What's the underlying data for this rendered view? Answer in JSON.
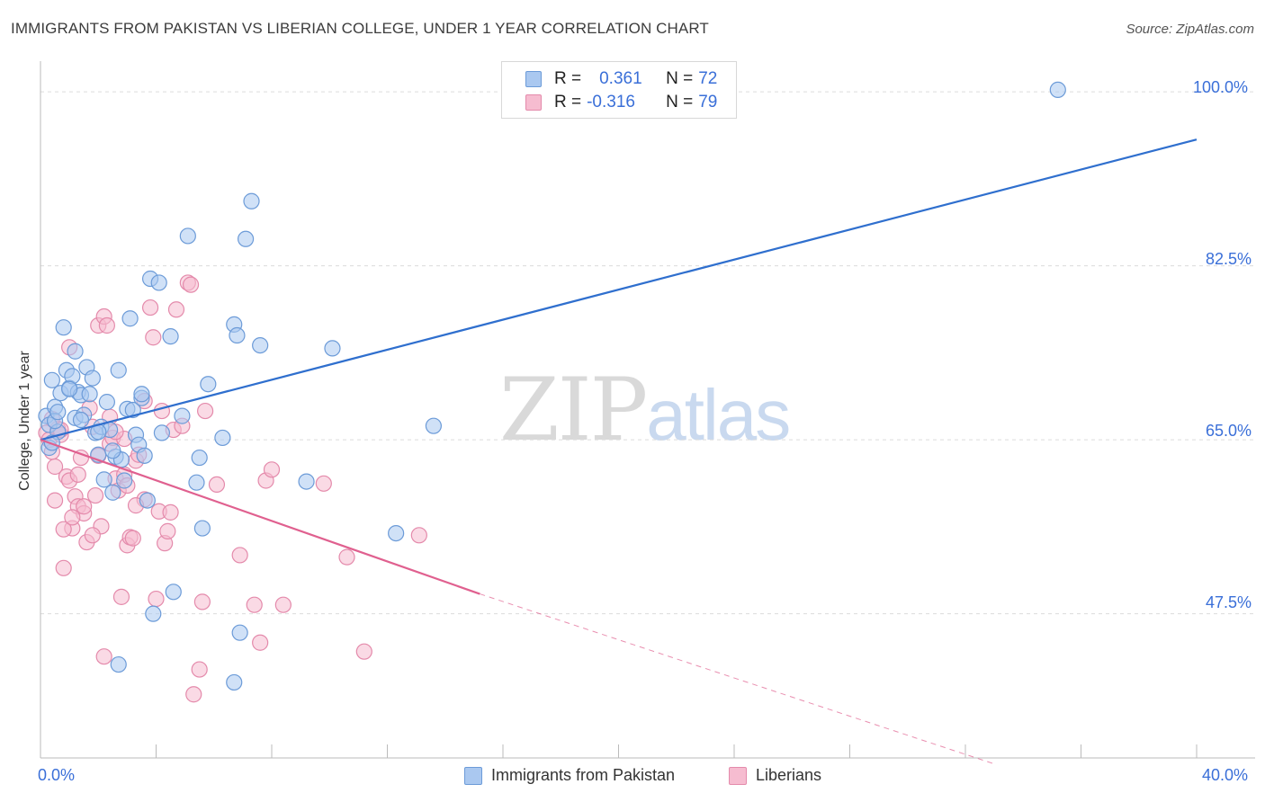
{
  "title": "IMMIGRANTS FROM PAKISTAN VS LIBERIAN COLLEGE, UNDER 1 YEAR CORRELATION CHART",
  "source": "Source: ZipAtlas.com",
  "watermark": {
    "zip": "ZIP",
    "atlas": "atlas"
  },
  "legend_top": {
    "row1": {
      "r_label": "R = ",
      "r_value": "0.361",
      "n_label": "N = ",
      "n_value": "72"
    },
    "row2": {
      "r_label": "R = ",
      "r_value": "-0.316",
      "n_label": "N = ",
      "n_value": "79"
    }
  },
  "legend_bottom": {
    "series1": "Immigrants from Pakistan",
    "series2": "Liberians"
  },
  "colors": {
    "blue_fill": "#aac8f0",
    "blue_stroke": "#6c9bd8",
    "blue_line": "#2f6fce",
    "pink_fill": "#f6bcd0",
    "pink_stroke": "#e48aab",
    "pink_line": "#e0608f",
    "grid": "#dcdcdc",
    "tick_text": "#3a6fd8"
  },
  "chart_data": {
    "type": "scatter",
    "title": "IMMIGRANTS FROM PAKISTAN VS LIBERIAN COLLEGE, UNDER 1 YEAR CORRELATION CHART",
    "xlabel": "",
    "ylabel": "College, Under 1 year",
    "xlim": [
      0,
      40
    ],
    "ylim": [
      33,
      102
    ],
    "x_tick_labels": [
      "0.0%",
      "40.0%"
    ],
    "y_ticks": [
      47.5,
      65.0,
      82.5,
      100.0
    ],
    "y_tick_labels": [
      "47.5%",
      "65.0%",
      "82.5%",
      "100.0%"
    ],
    "grid": true,
    "legend_position": "top-center",
    "series": [
      {
        "name": "Immigrants from Pakistan",
        "color": "#aac8f0",
        "points": [
          [
            0.2,
            67.4
          ],
          [
            0.3,
            66.5
          ],
          [
            0.3,
            64.2
          ],
          [
            0.4,
            71.0
          ],
          [
            0.5,
            68.3
          ],
          [
            0.6,
            65.8
          ],
          [
            0.7,
            69.7
          ],
          [
            0.8,
            76.3
          ],
          [
            0.9,
            72.0
          ],
          [
            1.0,
            70.2
          ],
          [
            1.1,
            71.4
          ],
          [
            1.2,
            67.2
          ],
          [
            1.3,
            69.8
          ],
          [
            1.4,
            69.5
          ],
          [
            1.5,
            67.5
          ],
          [
            1.6,
            72.3
          ],
          [
            1.8,
            71.2
          ],
          [
            1.9,
            65.7
          ],
          [
            2.0,
            63.5
          ],
          [
            2.1,
            66.3
          ],
          [
            2.2,
            61.0
          ],
          [
            2.3,
            68.8
          ],
          [
            2.4,
            66.0
          ],
          [
            2.5,
            59.7
          ],
          [
            2.6,
            63.3
          ],
          [
            2.7,
            72.0
          ],
          [
            2.8,
            63.0
          ],
          [
            2.9,
            60.9
          ],
          [
            3.0,
            68.1
          ],
          [
            3.1,
            77.2
          ],
          [
            3.2,
            68.0
          ],
          [
            3.3,
            65.5
          ],
          [
            3.4,
            64.5
          ],
          [
            3.5,
            69.2
          ],
          [
            3.6,
            63.4
          ],
          [
            3.7,
            58.9
          ],
          [
            3.8,
            81.2
          ],
          [
            4.1,
            80.8
          ],
          [
            4.2,
            65.7
          ],
          [
            4.5,
            75.4
          ],
          [
            4.6,
            49.7
          ],
          [
            4.9,
            67.4
          ],
          [
            5.1,
            85.5
          ],
          [
            5.4,
            60.7
          ],
          [
            5.5,
            63.2
          ],
          [
            5.8,
            70.6
          ],
          [
            6.3,
            65.2
          ],
          [
            6.7,
            76.6
          ],
          [
            6.8,
            75.5
          ],
          [
            7.1,
            85.2
          ],
          [
            7.3,
            89.0
          ],
          [
            7.6,
            74.5
          ],
          [
            9.2,
            60.8
          ],
          [
            10.1,
            74.2
          ],
          [
            12.3,
            55.6
          ],
          [
            13.6,
            66.4
          ],
          [
            35.2,
            100.2
          ],
          [
            3.9,
            47.5
          ],
          [
            2.7,
            42.4
          ],
          [
            6.9,
            45.6
          ],
          [
            6.7,
            40.6
          ],
          [
            0.4,
            64.7
          ],
          [
            0.5,
            66.9
          ],
          [
            1.7,
            69.6
          ],
          [
            2.0,
            65.8
          ],
          [
            1.2,
            73.9
          ],
          [
            1.0,
            70.1
          ],
          [
            0.6,
            67.8
          ],
          [
            3.5,
            69.6
          ],
          [
            2.5,
            63.9
          ],
          [
            5.6,
            56.1
          ],
          [
            1.4,
            67.0
          ]
        ]
      },
      {
        "name": "Liberians",
        "color": "#f6bcd0",
        "points": [
          [
            0.2,
            65.7
          ],
          [
            0.3,
            65.0
          ],
          [
            0.4,
            63.8
          ],
          [
            0.5,
            62.3
          ],
          [
            0.6,
            66.1
          ],
          [
            0.7,
            65.5
          ],
          [
            0.8,
            52.1
          ],
          [
            0.9,
            61.3
          ],
          [
            1.0,
            74.3
          ],
          [
            1.1,
            56.1
          ],
          [
            1.2,
            59.3
          ],
          [
            1.3,
            58.3
          ],
          [
            1.4,
            63.2
          ],
          [
            1.5,
            57.6
          ],
          [
            1.6,
            54.7
          ],
          [
            1.7,
            68.2
          ],
          [
            1.8,
            66.3
          ],
          [
            1.9,
            59.4
          ],
          [
            2.0,
            76.5
          ],
          [
            2.1,
            56.3
          ],
          [
            2.2,
            77.4
          ],
          [
            2.3,
            76.5
          ],
          [
            2.4,
            64.6
          ],
          [
            2.5,
            65.2
          ],
          [
            2.6,
            61.1
          ],
          [
            2.7,
            59.9
          ],
          [
            2.8,
            49.2
          ],
          [
            2.9,
            61.5
          ],
          [
            3.0,
            54.4
          ],
          [
            3.1,
            55.2
          ],
          [
            3.3,
            62.9
          ],
          [
            3.4,
            63.5
          ],
          [
            3.6,
            68.9
          ],
          [
            3.8,
            78.3
          ],
          [
            3.9,
            75.3
          ],
          [
            4.0,
            49.0
          ],
          [
            4.1,
            57.8
          ],
          [
            4.2,
            67.9
          ],
          [
            4.3,
            54.6
          ],
          [
            4.5,
            57.7
          ],
          [
            4.6,
            66.0
          ],
          [
            4.7,
            78.1
          ],
          [
            5.1,
            80.8
          ],
          [
            5.2,
            80.6
          ],
          [
            5.5,
            41.9
          ],
          [
            5.6,
            48.7
          ],
          [
            5.7,
            67.9
          ],
          [
            6.1,
            60.5
          ],
          [
            6.9,
            53.4
          ],
          [
            7.4,
            48.4
          ],
          [
            7.6,
            44.6
          ],
          [
            7.8,
            60.9
          ],
          [
            8.0,
            62.0
          ],
          [
            8.4,
            48.4
          ],
          [
            9.8,
            60.6
          ],
          [
            10.6,
            53.2
          ],
          [
            11.2,
            43.7
          ],
          [
            13.1,
            55.4
          ],
          [
            0.5,
            58.9
          ],
          [
            1.0,
            60.9
          ],
          [
            1.8,
            55.4
          ],
          [
            2.4,
            67.3
          ],
          [
            3.0,
            60.4
          ],
          [
            3.6,
            59.0
          ],
          [
            2.9,
            65.1
          ],
          [
            1.3,
            61.5
          ],
          [
            0.8,
            56.0
          ],
          [
            4.9,
            66.4
          ],
          [
            2.6,
            65.8
          ],
          [
            3.2,
            55.1
          ],
          [
            5.3,
            39.4
          ],
          [
            2.2,
            43.2
          ],
          [
            1.5,
            58.3
          ],
          [
            0.4,
            67.1
          ],
          [
            0.7,
            66.0
          ],
          [
            1.1,
            57.2
          ],
          [
            2.0,
            63.4
          ],
          [
            3.3,
            58.4
          ],
          [
            4.4,
            55.8
          ]
        ]
      }
    ],
    "trend_lines": [
      {
        "series": "Immigrants from Pakistan",
        "x": [
          0,
          40
        ],
        "y": [
          65.0,
          95.2
        ]
      },
      {
        "series": "Liberians",
        "x": [
          0,
          15.2
        ],
        "y": [
          65.0,
          49.5
        ],
        "dashed_extension_to": [
          33,
          32.4
        ]
      }
    ]
  }
}
